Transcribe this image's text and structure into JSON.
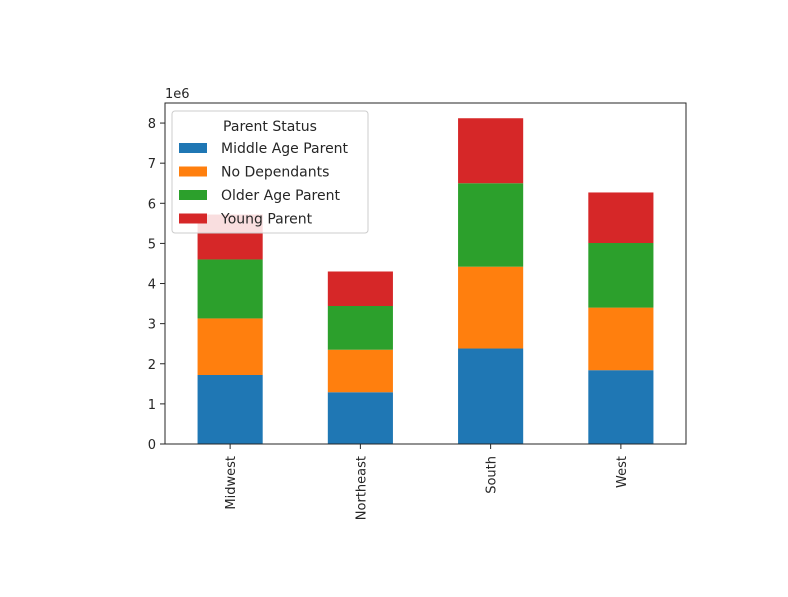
{
  "chart_data": {
    "type": "bar",
    "stacked": true,
    "title": "",
    "xlabel": "",
    "ylabel": "",
    "y_offset_text": "1e6",
    "ylim": [
      0,
      8.5
    ],
    "yticks": [
      0,
      1,
      2,
      3,
      4,
      5,
      6,
      7,
      8
    ],
    "grid": false,
    "categories": [
      "Midwest",
      "Northeast",
      "South",
      "West"
    ],
    "legend": {
      "title": "Parent Status",
      "placement": "top-left"
    },
    "series": [
      {
        "name": "Middle Age Parent",
        "color": "#1f77b4",
        "values": [
          1.72,
          1.29,
          2.38,
          1.84
        ]
      },
      {
        "name": "No Dependants",
        "color": "#ff7f0e",
        "values": [
          1.41,
          1.06,
          2.04,
          1.56
        ]
      },
      {
        "name": "Older Age Parent",
        "color": "#2ca02c",
        "values": [
          1.47,
          1.09,
          2.08,
          1.61
        ]
      },
      {
        "name": "Young Parent",
        "color": "#d62728",
        "values": [
          1.12,
          0.86,
          1.62,
          1.26
        ]
      }
    ]
  }
}
